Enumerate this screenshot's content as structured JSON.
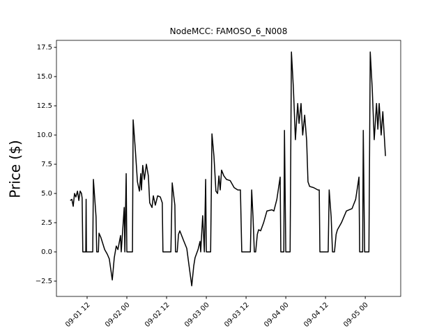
{
  "chart_data": {
    "type": "line",
    "title": "NodeMCC: FAMOSO_6_N008",
    "y_label": "Price ($)",
    "x": [
      6.9,
      7.4,
      7.8,
      8.2,
      8.6,
      9.1,
      9.5,
      9.9,
      10.3,
      10.5,
      10.7,
      11.6,
      11.7,
      11.8,
      13.7,
      13.9,
      14.7,
      14.9,
      15.4,
      15.6,
      16.2,
      17.3,
      18.1,
      18.7,
      19.6,
      20.2,
      20.8,
      21.3,
      22.1,
      22.3,
      22.9,
      23.2,
      23.4,
      23.8,
      24.0,
      25.7,
      25.9,
      26.5,
      27.2,
      27.8,
      28.2,
      28.4,
      28.8,
      29.3,
      29.9,
      30.5,
      30.9,
      31.6,
      32.0,
      32.6,
      33.3,
      34.1,
      34.7,
      34.9,
      37.3,
      37.7,
      38.5,
      38.7,
      39.2,
      39.6,
      40.0,
      41.1,
      42.1,
      42.7,
      43.6,
      44.2,
      44.6,
      45.5,
      46.1,
      46.3,
      46.9,
      47.4,
      47.8,
      48.0,
      49.3,
      49.7,
      50.3,
      50.9,
      51.4,
      51.8,
      52.2,
      52.6,
      53.3,
      54.1,
      55.2,
      56.4,
      57.5,
      58.3,
      58.7,
      61.3,
      61.7,
      62.1,
      62.5,
      62.9,
      63.4,
      63.8,
      64.4,
      65.3,
      66.3,
      67.8,
      68.4,
      69.3,
      70.3,
      70.5,
      71.4,
      71.6,
      72.0,
      73.3,
      73.7,
      74.3,
      74.9,
      75.6,
      76.0,
      76.6,
      77.1,
      77.7,
      78.3,
      78.7,
      79.2,
      80.4,
      81.7,
      82.1,
      82.3,
      84.8,
      85.1,
      85.7,
      86.1,
      86.7,
      87.2,
      87.6,
      88.8,
      90.3,
      92.0,
      93.1,
      94.1,
      94.3,
      95.2,
      95.4,
      95.8,
      97.1,
      97.5,
      98.1,
      98.7,
      99.4,
      99.8,
      100.2,
      100.8,
      101.3,
      102.1
    ],
    "series": [
      {
        "color": "#000000",
        "values": [
          4.4,
          4.5,
          3.9,
          5.0,
          4.7,
          5.2,
          4.4,
          5.2,
          5.0,
          4.6,
          0,
          0,
          4.5,
          0,
          0,
          6.2,
          3,
          0,
          0,
          1.6,
          1.2,
          0.2,
          -0.2,
          -0.6,
          -2.4,
          -0.5,
          0.5,
          0.2,
          1.4,
          0,
          2.5,
          3.8,
          0,
          6.7,
          0,
          0,
          11.3,
          9,
          6,
          5.2,
          6.7,
          5.3,
          7.4,
          6.2,
          7.5,
          6.5,
          4.2,
          3.8,
          4.8,
          4.0,
          4.8,
          4.7,
          4.2,
          0,
          0,
          5.9,
          4,
          0,
          0,
          1.5,
          1.8,
          1.0,
          0.3,
          -1,
          -2.9,
          -1.2,
          -0.5,
          0.2,
          0.9,
          0,
          3.1,
          0,
          6.2,
          0,
          0,
          10.1,
          8.2,
          5.2,
          5.0,
          6.5,
          5.3,
          7.0,
          6.5,
          6.2,
          6.1,
          5.5,
          5.3,
          5.3,
          0,
          0,
          5.3,
          3,
          0,
          0,
          1.5,
          1.9,
          1.8,
          2.5,
          3.5,
          3.6,
          3.5,
          4.5,
          6.4,
          0,
          0,
          10.4,
          0,
          0,
          17.1,
          14,
          9.6,
          12.7,
          11,
          12.7,
          10,
          11.7,
          9.5,
          6,
          5.6,
          5.5,
          5.3,
          5.3,
          0,
          0,
          5.3,
          3,
          0,
          0,
          1.5,
          1.9,
          2.5,
          3.5,
          3.7,
          4.5,
          6.4,
          0,
          0,
          10.4,
          0,
          0,
          17.1,
          14,
          9.6,
          12.7,
          10.5,
          12.7,
          10,
          12,
          8.2
        ]
      }
    ],
    "xlim": [
      2.74,
      106.7
    ],
    "xticks": [
      {
        "value": 12,
        "label": "09-01 12"
      },
      {
        "value": 24,
        "label": "09-02 00"
      },
      {
        "value": 36,
        "label": "09-02 12"
      },
      {
        "value": 48,
        "label": "09-03 00"
      },
      {
        "value": 60,
        "label": "09-03 12"
      },
      {
        "value": 72,
        "label": "09-04 00"
      },
      {
        "value": 84,
        "label": "09-04 12"
      },
      {
        "value": 96,
        "label": "09-05 00"
      }
    ],
    "ylim": [
      -3.81,
      18.1
    ],
    "yticks": [
      {
        "value": -2.5,
        "label": "−2.5"
      },
      {
        "value": 0,
        "label": "0.0"
      },
      2.5,
      {
        "value": 5,
        "label": "5.0"
      },
      7.5,
      {
        "value": 10,
        "label": "10.0"
      },
      12.5,
      {
        "value": 15,
        "label": "15.0"
      },
      17.5
    ]
  }
}
